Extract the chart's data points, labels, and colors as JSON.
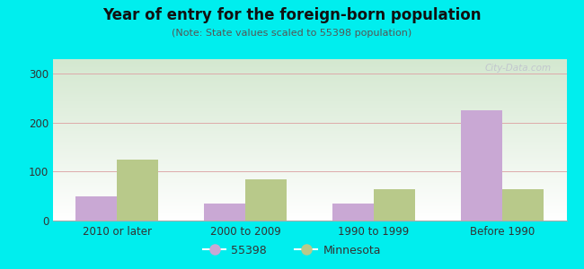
{
  "title": "Year of entry for the foreign-born population",
  "subtitle": "(Note: State values scaled to 55398 population)",
  "categories": [
    "2010 or later",
    "2000 to 2009",
    "1990 to 1999",
    "Before 1990"
  ],
  "series": [
    {
      "label": "55398",
      "values": [
        50,
        35,
        35,
        225
      ],
      "color": "#c9a8d4"
    },
    {
      "label": "Minnesota",
      "values": [
        125,
        85,
        65,
        65
      ],
      "color": "#b8c98a"
    }
  ],
  "background_color": "#00eeee",
  "ylim": [
    0,
    330
  ],
  "yticks": [
    0,
    100,
    200,
    300
  ],
  "bar_width": 0.32,
  "watermark": "City-Data.com",
  "grid_color": "#ddaaaa",
  "bg_top": "#ffffff",
  "bg_bottom": "#d4e8d0"
}
